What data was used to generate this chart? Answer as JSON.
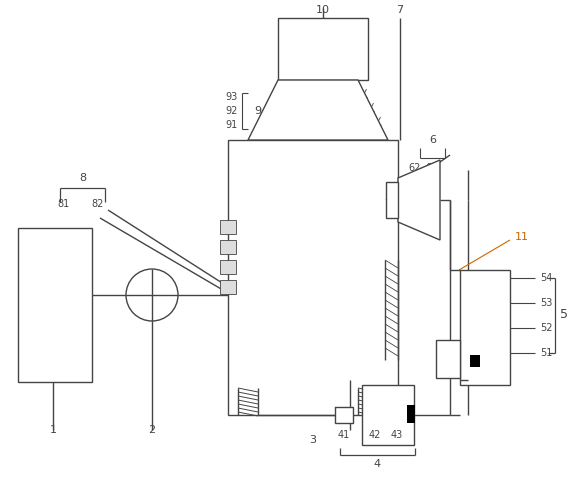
{
  "figsize": [
    5.71,
    4.82
  ],
  "dpi": 100,
  "bg_color": "#ffffff",
  "lc": "#444444",
  "orange": "#cc6600"
}
